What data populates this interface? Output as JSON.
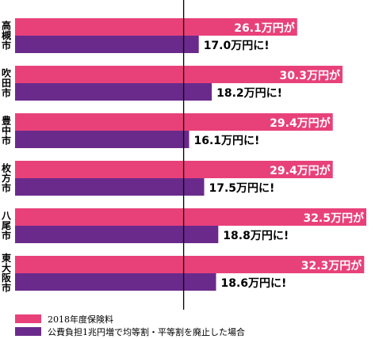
{
  "chart_data": {
    "type": "bar",
    "orientation": "horizontal",
    "categories": [
      "高槻市",
      "吹田市",
      "豊中市",
      "枚方市",
      "八尾市",
      "東大阪市"
    ],
    "series": [
      {
        "name": "2018年度保険料",
        "values": [
          26.1,
          30.3,
          29.4,
          29.4,
          32.5,
          32.3
        ],
        "labels": [
          "26.1万円が",
          "30.3万円が",
          "29.4万円が",
          "29.4万円が",
          "32.5万円が",
          "32.3万円が"
        ],
        "color": "#e8417a"
      },
      {
        "name": "公費負担1兆円増で均等割・平等割を廃止した場合",
        "values": [
          17.0,
          18.2,
          16.1,
          17.5,
          18.8,
          18.6
        ],
        "labels": [
          "17.0万円に!",
          "18.2万円に!",
          "16.1万円に!",
          "17.5万円に!",
          "18.8万円に!",
          "18.6万円に!"
        ],
        "color": "#6a2a8c"
      }
    ],
    "reference_value": 15.6,
    "xlim": [
      0,
      33.6
    ],
    "legend_position": "bottom-left"
  }
}
